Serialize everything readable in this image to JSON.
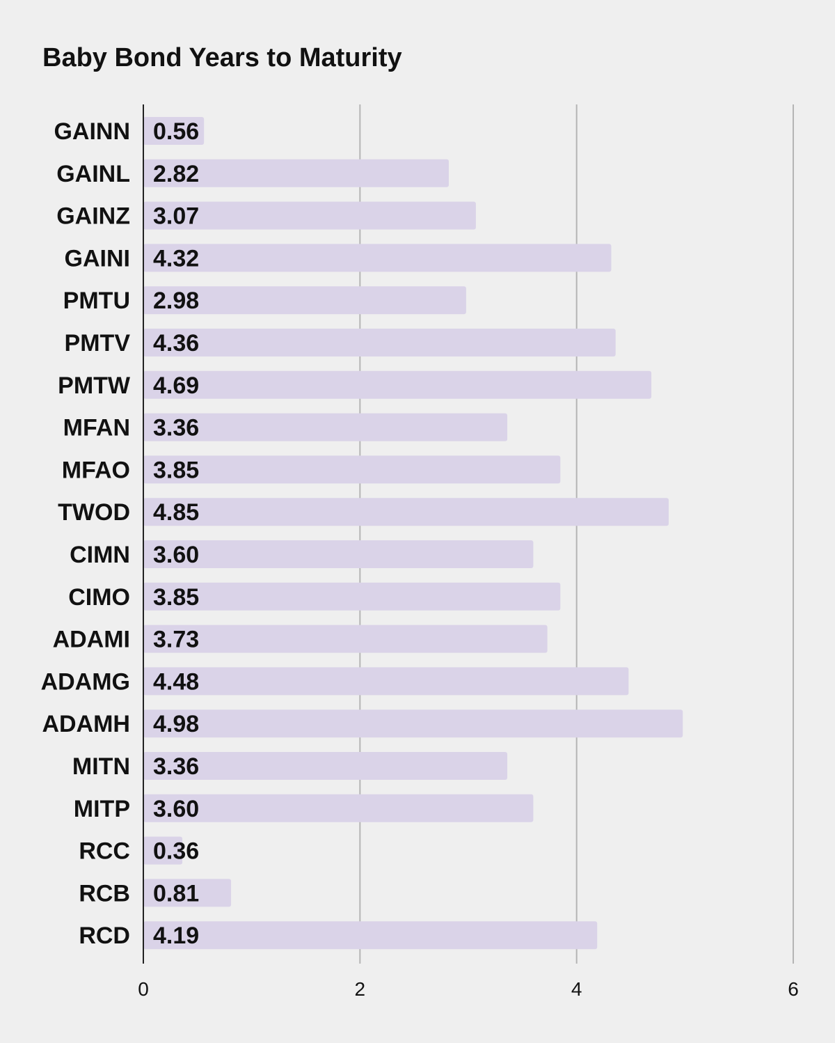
{
  "chart_data": {
    "type": "bar",
    "orientation": "horizontal",
    "title": "Baby Bond Years to Maturity",
    "xlabel": "",
    "ylabel": "",
    "categories": [
      "GAINN",
      "GAINL",
      "GAINZ",
      "GAINI",
      "PMTU",
      "PMTV",
      "PMTW",
      "MFAN",
      "MFAO",
      "TWOD",
      "CIMN",
      "CIMO",
      "ADAMI",
      "ADAMG",
      "ADAMH",
      "MITN",
      "MITP",
      "RCC",
      "RCB",
      "RCD"
    ],
    "values": [
      0.56,
      2.82,
      3.07,
      4.32,
      2.98,
      4.36,
      4.69,
      3.36,
      3.85,
      4.85,
      3.6,
      3.85,
      3.73,
      4.48,
      4.98,
      3.36,
      3.6,
      0.36,
      0.81,
      4.19
    ],
    "value_labels": [
      "0.56",
      "2.82",
      "3.07",
      "4.32",
      "2.98",
      "4.36",
      "4.69",
      "3.36",
      "3.85",
      "4.85",
      "3.60",
      "3.85",
      "3.73",
      "4.48",
      "4.98",
      "3.36",
      "3.60",
      "0.36",
      "0.81",
      "4.19"
    ],
    "xlim": [
      0,
      6
    ],
    "xticks": [
      0,
      2,
      4,
      6
    ],
    "xtick_labels": [
      "0",
      "2",
      "4",
      "6"
    ],
    "grid": "vertical",
    "legend": "none",
    "colors": {
      "bar": "#dad3e8",
      "gridline": "#b4b4b4",
      "axis": "#222222",
      "background": "#efefef",
      "text": "#111111"
    }
  }
}
